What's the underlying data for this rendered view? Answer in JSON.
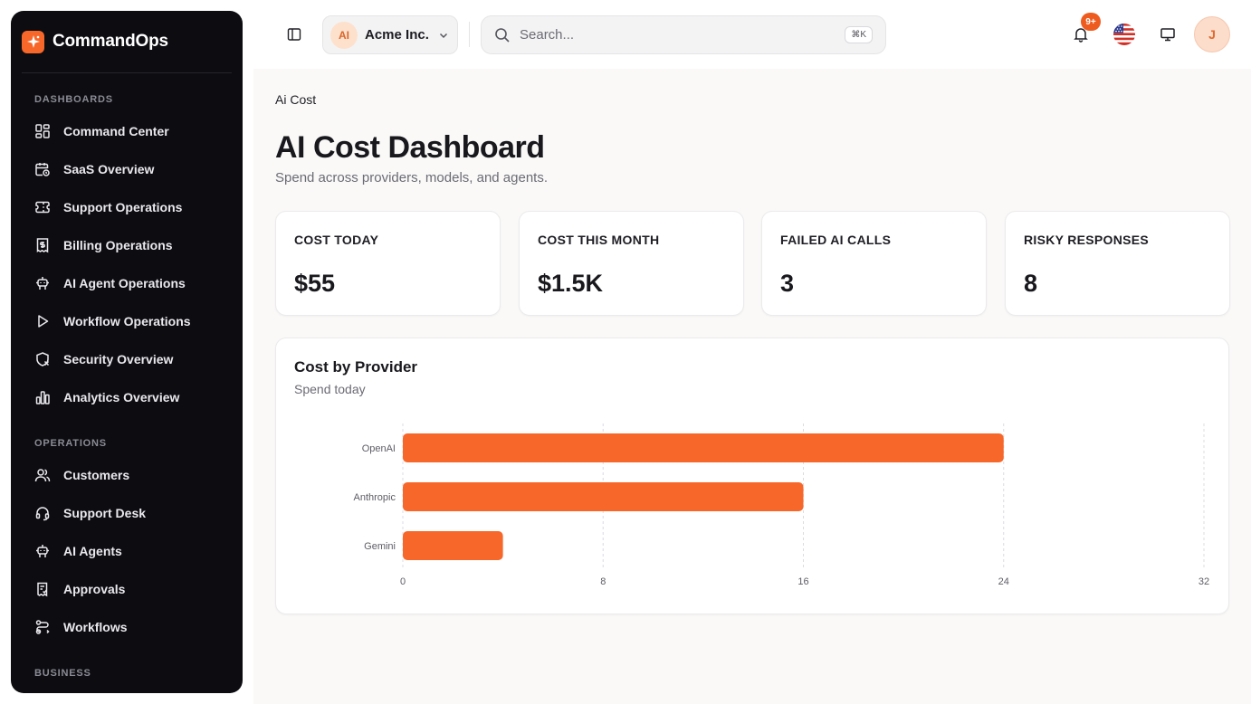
{
  "brand": {
    "name": "CommandOps"
  },
  "sidebar": {
    "sections": [
      {
        "title": "DASHBOARDS",
        "items": [
          {
            "label": "Command Center",
            "icon": "dashboard-icon"
          },
          {
            "label": "SaaS Overview",
            "icon": "calendar-clock-icon"
          },
          {
            "label": "Support Operations",
            "icon": "ticket-icon"
          },
          {
            "label": "Billing Operations",
            "icon": "receipt-icon"
          },
          {
            "label": "AI Agent Operations",
            "icon": "bot-icon"
          },
          {
            "label": "Workflow Operations",
            "icon": "play-icon"
          },
          {
            "label": "Security Overview",
            "icon": "shield-x-icon"
          },
          {
            "label": "Analytics Overview",
            "icon": "bar-chart-icon"
          }
        ]
      },
      {
        "title": "OPERATIONS",
        "items": [
          {
            "label": "Customers",
            "icon": "users-icon"
          },
          {
            "label": "Support Desk",
            "icon": "headset-icon"
          },
          {
            "label": "AI Agents",
            "icon": "bot-icon"
          },
          {
            "label": "Approvals",
            "icon": "clipboard-check-icon"
          },
          {
            "label": "Workflows",
            "icon": "workflow-icon"
          }
        ]
      },
      {
        "title": "BUSINESS",
        "items": []
      }
    ]
  },
  "topbar": {
    "org": {
      "initials": "AI",
      "name": "Acme Inc."
    },
    "search": {
      "placeholder": "Search...",
      "shortcut": "⌘K"
    },
    "notifications": {
      "badge": "9+"
    },
    "avatar": {
      "initial": "J"
    }
  },
  "page": {
    "breadcrumb": "Ai Cost",
    "title": "AI Cost Dashboard",
    "subtitle": "Spend across providers, models, and agents."
  },
  "stats": [
    {
      "label": "COST TODAY",
      "value": "$55"
    },
    {
      "label": "COST THIS MONTH",
      "value": "$1.5K"
    },
    {
      "label": "FAILED AI CALLS",
      "value": "3"
    },
    {
      "label": "RISKY RESPONSES",
      "value": "8"
    }
  ],
  "colors": {
    "accent": "#f7672a",
    "sidebar_bg": "#0c0c11",
    "page_bg": "#faf9f8"
  },
  "chart_data": {
    "type": "bar",
    "orientation": "horizontal",
    "title": "Cost by Provider",
    "subtitle": "Spend today",
    "categories": [
      "OpenAI",
      "Anthropic",
      "Gemini"
    ],
    "values": [
      24,
      16,
      4
    ],
    "xlim": [
      0,
      32
    ],
    "xticks": [
      0,
      8,
      16,
      24,
      32
    ],
    "grid": true,
    "color": "#f7672a"
  }
}
